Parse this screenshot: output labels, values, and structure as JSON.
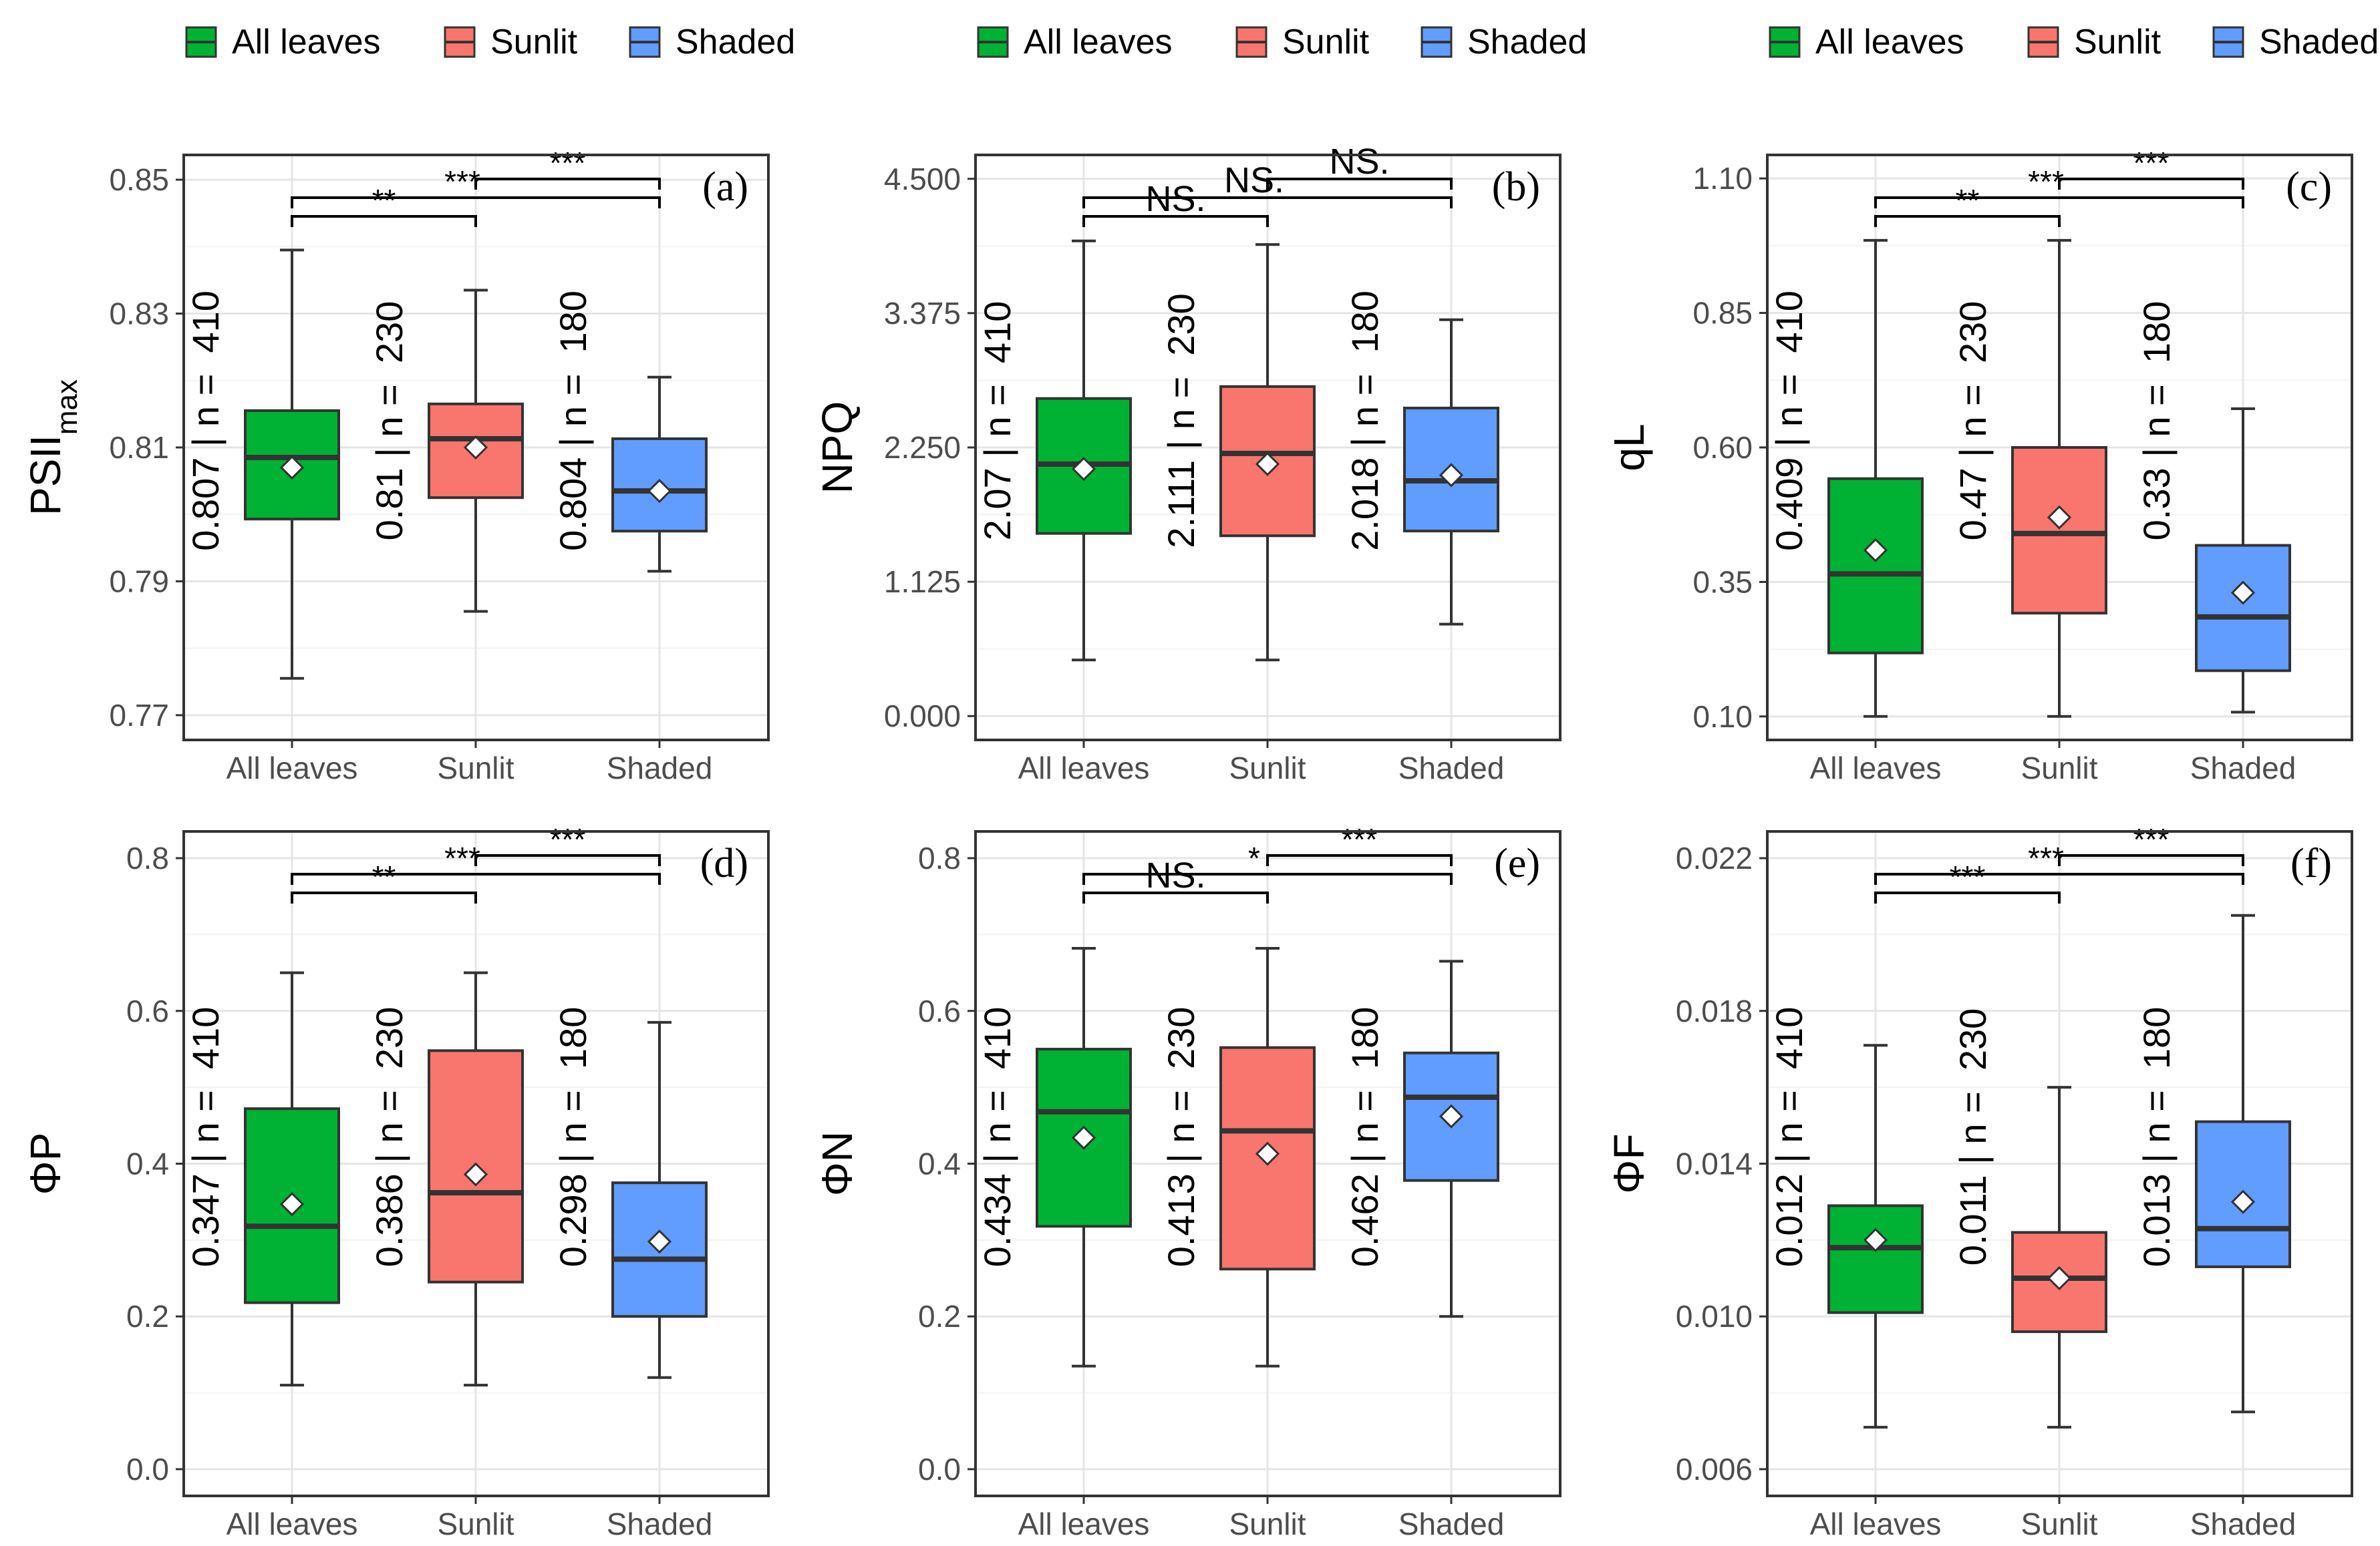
{
  "chart_data": [
    {
      "panel": "(a)",
      "type": "boxplot",
      "ylabel": "PSII",
      "ylabel_sub": "max",
      "ylim": [
        0.7663,
        0.8537
      ],
      "yticks": [
        0.77,
        0.79,
        0.81,
        0.83,
        0.85
      ],
      "ytick_labels": [
        "0.77",
        "0.79",
        "0.81",
        "0.83",
        "0.85"
      ],
      "categories": [
        "All leaves",
        "Sunlit",
        "Shaded"
      ],
      "boxes": [
        {
          "name": "All leaves",
          "whisker_low": 0.7755,
          "q1": 0.7993,
          "median": 0.8085,
          "q3": 0.8155,
          "whisker_high": 0.8395,
          "mean": 0.807,
          "annotation": "0.807 | n =  410"
        },
        {
          "name": "Sunlit",
          "whisker_low": 0.7855,
          "q1": 0.8025,
          "median": 0.8113,
          "q3": 0.8165,
          "whisker_high": 0.8335,
          "mean": 0.81,
          "annotation": "0.81 | n =  230"
        },
        {
          "name": "Shaded",
          "whisker_low": 0.7915,
          "q1": 0.7975,
          "median": 0.8035,
          "q3": 0.8113,
          "whisker_high": 0.8205,
          "mean": 0.8035,
          "annotation": "0.804 | n =  180"
        }
      ],
      "comparisons": [
        {
          "from": "All leaves",
          "to": "Sunlit",
          "label": "**",
          "level": 0
        },
        {
          "from": "All leaves",
          "to": "Shaded",
          "label": "***",
          "level": 1
        },
        {
          "from": "Sunlit",
          "to": "Shaded",
          "label": "***",
          "level": 2
        }
      ]
    },
    {
      "panel": "(b)",
      "type": "boxplot",
      "ylabel": "NPQ",
      "ylabel_sub": "",
      "ylim": [
        -0.2,
        4.7
      ],
      "yticks": [
        0.0,
        1.125,
        2.25,
        3.375,
        4.5
      ],
      "ytick_labels": [
        "0.000",
        "1.125",
        "2.250",
        "3.375",
        "4.500"
      ],
      "categories": [
        "All leaves",
        "Sunlit",
        "Shaded"
      ],
      "boxes": [
        {
          "name": "All leaves",
          "whisker_low": 0.47,
          "q1": 1.53,
          "median": 2.11,
          "q3": 2.66,
          "whisker_high": 3.98,
          "mean": 2.07,
          "annotation": "2.07 | n =  410"
        },
        {
          "name": "Sunlit",
          "whisker_low": 0.47,
          "q1": 1.51,
          "median": 2.2,
          "q3": 2.76,
          "whisker_high": 3.95,
          "mean": 2.111,
          "annotation": "2.111 | n =  230"
        },
        {
          "name": "Shaded",
          "whisker_low": 0.77,
          "q1": 1.55,
          "median": 1.97,
          "q3": 2.58,
          "whisker_high": 3.32,
          "mean": 2.018,
          "annotation": "2.018 | n =  180"
        }
      ],
      "comparisons": [
        {
          "from": "All leaves",
          "to": "Sunlit",
          "label": "NS.",
          "level": 0
        },
        {
          "from": "All leaves",
          "to": "Shaded",
          "label": "NS.",
          "level": 1
        },
        {
          "from": "Sunlit",
          "to": "Shaded",
          "label": "NS.",
          "level": 2
        }
      ]
    },
    {
      "panel": "(c)",
      "type": "boxplot",
      "ylabel": "qL",
      "ylabel_sub": "",
      "ylim": [
        0.0563,
        1.1437
      ],
      "yticks": [
        0.1,
        0.35,
        0.6,
        0.85,
        1.1
      ],
      "ytick_labels": [
        "0.10",
        "0.35",
        "0.60",
        "0.85",
        "1.10"
      ],
      "categories": [
        "All leaves",
        "Sunlit",
        "Shaded"
      ],
      "boxes": [
        {
          "name": "All leaves",
          "whisker_low": 0.1,
          "q1": 0.218,
          "median": 0.365,
          "q3": 0.542,
          "whisker_high": 0.985,
          "mean": 0.409,
          "annotation": "0.409 | n =  410"
        },
        {
          "name": "Sunlit",
          "whisker_low": 0.1,
          "q1": 0.292,
          "median": 0.44,
          "q3": 0.6,
          "whisker_high": 0.985,
          "mean": 0.47,
          "annotation": "0.47 | n =  230"
        },
        {
          "name": "Shaded",
          "whisker_low": 0.108,
          "q1": 0.185,
          "median": 0.285,
          "q3": 0.418,
          "whisker_high": 0.672,
          "mean": 0.33,
          "annotation": "0.33 | n =  180"
        }
      ],
      "comparisons": [
        {
          "from": "All leaves",
          "to": "Sunlit",
          "label": "**",
          "level": 0
        },
        {
          "from": "All leaves",
          "to": "Shaded",
          "label": "***",
          "level": 1
        },
        {
          "from": "Sunlit",
          "to": "Shaded",
          "label": "***",
          "level": 2
        }
      ]
    },
    {
      "panel": "(d)",
      "type": "boxplot",
      "ylabel": "ΦP",
      "ylabel_sub": "",
      "ylim": [
        -0.035,
        0.835
      ],
      "yticks": [
        0.0,
        0.2,
        0.4,
        0.6,
        0.8
      ],
      "ytick_labels": [
        "0.0",
        "0.2",
        "0.4",
        "0.6",
        "0.8"
      ],
      "categories": [
        "All leaves",
        "Sunlit",
        "Shaded"
      ],
      "boxes": [
        {
          "name": "All leaves",
          "whisker_low": 0.11,
          "q1": 0.218,
          "median": 0.318,
          "q3": 0.472,
          "whisker_high": 0.65,
          "mean": 0.347,
          "annotation": "0.347 | n =  410"
        },
        {
          "name": "Sunlit",
          "whisker_low": 0.11,
          "q1": 0.245,
          "median": 0.362,
          "q3": 0.548,
          "whisker_high": 0.65,
          "mean": 0.386,
          "annotation": "0.386 | n =  230"
        },
        {
          "name": "Shaded",
          "whisker_low": 0.12,
          "q1": 0.2,
          "median": 0.275,
          "q3": 0.375,
          "whisker_high": 0.585,
          "mean": 0.298,
          "annotation": "0.298 | n =  180"
        }
      ],
      "comparisons": [
        {
          "from": "All leaves",
          "to": "Sunlit",
          "label": "**",
          "level": 0
        },
        {
          "from": "All leaves",
          "to": "Shaded",
          "label": "***",
          "level": 1
        },
        {
          "from": "Sunlit",
          "to": "Shaded",
          "label": "***",
          "level": 2
        }
      ]
    },
    {
      "panel": "(e)",
      "type": "boxplot",
      "ylabel": "ΦN",
      "ylabel_sub": "",
      "ylim": [
        -0.035,
        0.835
      ],
      "yticks": [
        0.0,
        0.2,
        0.4,
        0.6,
        0.8
      ],
      "ytick_labels": [
        "0.0",
        "0.2",
        "0.4",
        "0.6",
        "0.8"
      ],
      "categories": [
        "All leaves",
        "Sunlit",
        "Shaded"
      ],
      "boxes": [
        {
          "name": "All leaves",
          "whisker_low": 0.135,
          "q1": 0.318,
          "median": 0.468,
          "q3": 0.55,
          "whisker_high": 0.682,
          "mean": 0.434,
          "annotation": "0.434 | n =  410"
        },
        {
          "name": "Sunlit",
          "whisker_low": 0.135,
          "q1": 0.262,
          "median": 0.443,
          "q3": 0.552,
          "whisker_high": 0.682,
          "mean": 0.413,
          "annotation": "0.413 | n =  230"
        },
        {
          "name": "Shaded",
          "whisker_low": 0.2,
          "q1": 0.378,
          "median": 0.487,
          "q3": 0.545,
          "whisker_high": 0.665,
          "mean": 0.462,
          "annotation": "0.462 | n =  180"
        }
      ],
      "comparisons": [
        {
          "from": "All leaves",
          "to": "Sunlit",
          "label": "NS.",
          "level": 0
        },
        {
          "from": "All leaves",
          "to": "Shaded",
          "label": "*",
          "level": 1
        },
        {
          "from": "Sunlit",
          "to": "Shaded",
          "label": "***",
          "level": 2
        }
      ]
    },
    {
      "panel": "(f)",
      "type": "boxplot",
      "ylabel": "ΦF",
      "ylabel_sub": "",
      "ylim": [
        0.0053,
        0.0227
      ],
      "yticks": [
        0.006,
        0.01,
        0.014,
        0.018,
        0.022
      ],
      "ytick_labels": [
        "0.006",
        "0.010",
        "0.014",
        "0.018",
        "0.022"
      ],
      "categories": [
        "All leaves",
        "Sunlit",
        "Shaded"
      ],
      "boxes": [
        {
          "name": "All leaves",
          "whisker_low": 0.0071,
          "q1": 0.0101,
          "median": 0.0118,
          "q3": 0.0129,
          "whisker_high": 0.0171,
          "mean": 0.012,
          "annotation": "0.012 | n =  410"
        },
        {
          "name": "Sunlit",
          "whisker_low": 0.0071,
          "q1": 0.0096,
          "median": 0.011,
          "q3": 0.0122,
          "whisker_high": 0.016,
          "mean": 0.011,
          "annotation": "0.011 | n =  230"
        },
        {
          "name": "Shaded",
          "whisker_low": 0.0075,
          "q1": 0.0113,
          "median": 0.0123,
          "q3": 0.0151,
          "whisker_high": 0.0205,
          "mean": 0.013,
          "annotation": "0.013 | n =  180"
        }
      ],
      "comparisons": [
        {
          "from": "All leaves",
          "to": "Sunlit",
          "label": "***",
          "level": 0
        },
        {
          "from": "All leaves",
          "to": "Shaded",
          "label": "***",
          "level": 1
        },
        {
          "from": "Sunlit",
          "to": "Shaded",
          "label": "***",
          "level": 2
        }
      ]
    }
  ],
  "legend": {
    "entries": [
      {
        "label": "All leaves",
        "color": "#00b233"
      },
      {
        "label": "Sunlit",
        "color": "#f8766d"
      },
      {
        "label": "Shaded",
        "color": "#619cff"
      }
    ]
  },
  "colors": {
    "All leaves": "#00b233",
    "Sunlit": "#f8766d",
    "Shaded": "#619cff"
  }
}
